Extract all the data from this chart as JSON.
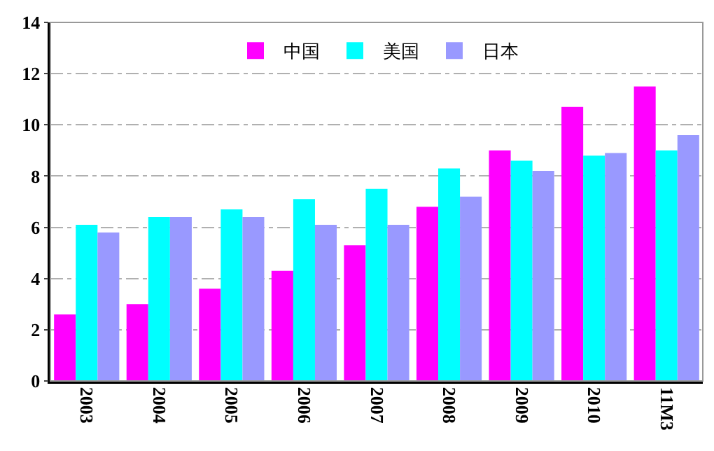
{
  "chart_data": {
    "type": "bar",
    "categories": [
      "2003",
      "2004",
      "2005",
      "2006",
      "2007",
      "2008",
      "2009",
      "2010",
      "11M3"
    ],
    "series": [
      {
        "name": "中国",
        "color": "#ff00ff",
        "values": [
          2.6,
          3.0,
          3.6,
          4.3,
          5.3,
          6.8,
          9.0,
          10.7,
          11.5
        ]
      },
      {
        "name": "美国",
        "color": "#00ffff",
        "values": [
          6.1,
          6.4,
          6.7,
          7.1,
          7.5,
          8.3,
          8.6,
          8.8,
          9.0
        ]
      },
      {
        "name": "日本",
        "color": "#9999ff",
        "values": [
          5.8,
          6.4,
          6.4,
          6.1,
          6.1,
          7.2,
          8.2,
          8.9,
          9.6
        ]
      }
    ],
    "ylim": [
      0,
      14
    ],
    "yticks": [
      0,
      2,
      4,
      6,
      8,
      10,
      12,
      14
    ],
    "grid": "y",
    "legend": "top"
  }
}
